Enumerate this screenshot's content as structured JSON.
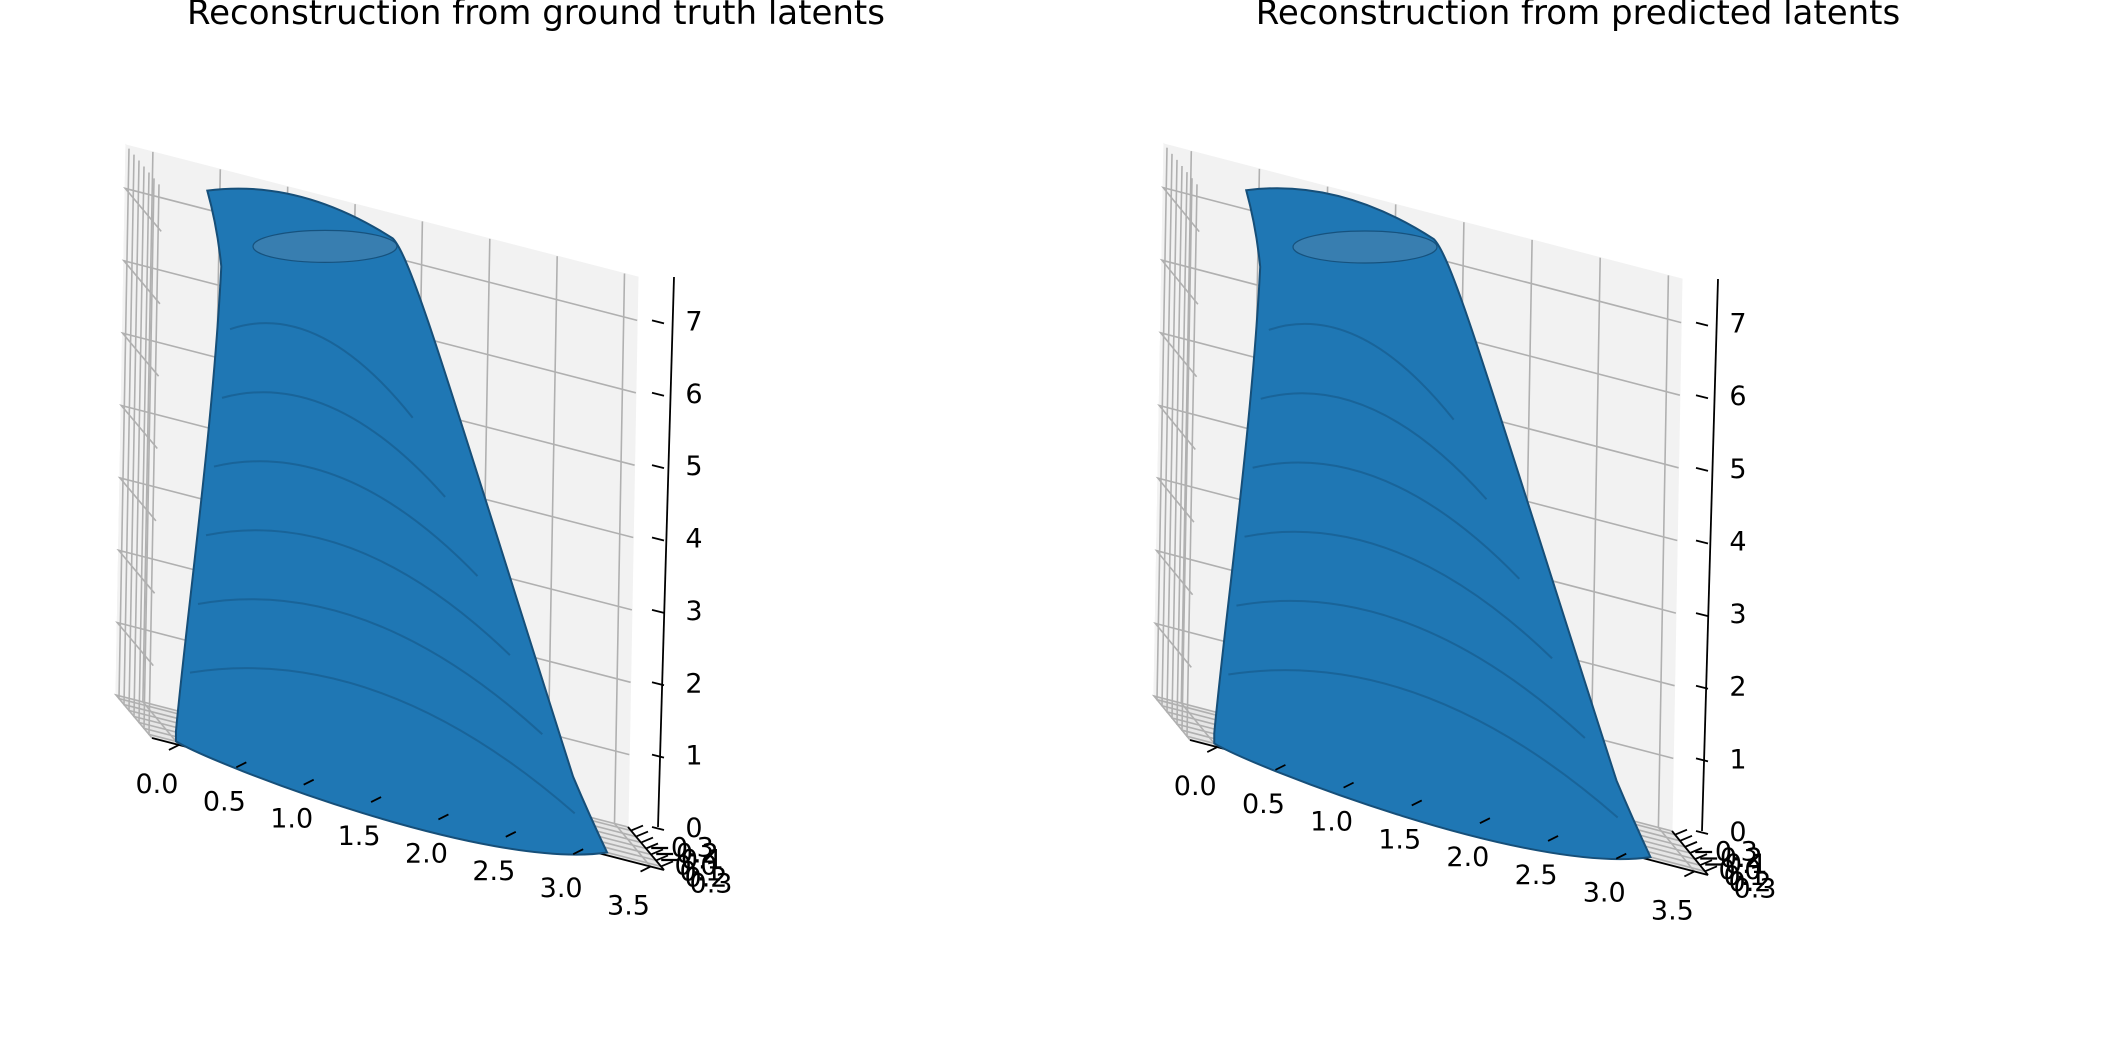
{
  "figure": {
    "background": "#ffffff",
    "surface_color": "#1f77b4",
    "pane_color": "#f2f2f2",
    "grid_color": "#b0b0b0"
  },
  "chart_data": [
    {
      "type": "surface3d",
      "title": "Reconstruction from ground truth latents",
      "xlabel": "",
      "ylabel": "",
      "zlabel": "",
      "grid": true,
      "xlim": [
        -0.2,
        3.6
      ],
      "ylim": [
        -0.36,
        0.36
      ],
      "zlim": [
        0,
        7.6
      ],
      "x_ticks": [
        "0.0",
        "0.5",
        "1.0",
        "1.5",
        "2.0",
        "2.5",
        "3.0",
        "3.5"
      ],
      "y_ticks": [
        "−0.3",
        "−0.2",
        "−0.1",
        "0.0",
        "0.1",
        "0.2",
        "0.3"
      ],
      "z_ticks": [
        "0",
        "1",
        "2",
        "3",
        "4",
        "5",
        "6",
        "7"
      ],
      "surface": {
        "shape": "tapered bulged column, wide base narrowing to rounded top with flat cap",
        "x_extent": [
          0.0,
          3.2
        ],
        "y_extent": [
          -0.3,
          0.3
        ],
        "z_extent": [
          0,
          7.3
        ],
        "color": "#1f77b4"
      }
    },
    {
      "type": "surface3d",
      "title": "Reconstruction from predicted latents",
      "xlabel": "",
      "ylabel": "",
      "zlabel": "",
      "grid": true,
      "xlim": [
        -0.2,
        3.6
      ],
      "ylim": [
        -0.36,
        0.36
      ],
      "zlim": [
        0,
        7.6
      ],
      "x_ticks": [
        "0.0",
        "0.5",
        "1.0",
        "1.5",
        "2.0",
        "2.5",
        "3.0",
        "3.5"
      ],
      "y_ticks": [
        "−0.3",
        "−0.2",
        "−0.1",
        "0.0",
        "0.1",
        "0.2",
        "0.3"
      ],
      "z_ticks": [
        "0",
        "1",
        "2",
        "3",
        "4",
        "5",
        "6",
        "7"
      ],
      "surface": {
        "shape": "tapered bulged column, wide base narrowing to rounded top with flat cap",
        "x_extent": [
          0.0,
          3.2
        ],
        "y_extent": [
          -0.3,
          0.3
        ],
        "z_extent": [
          0,
          7.3
        ],
        "color": "#1f77b4"
      }
    }
  ]
}
